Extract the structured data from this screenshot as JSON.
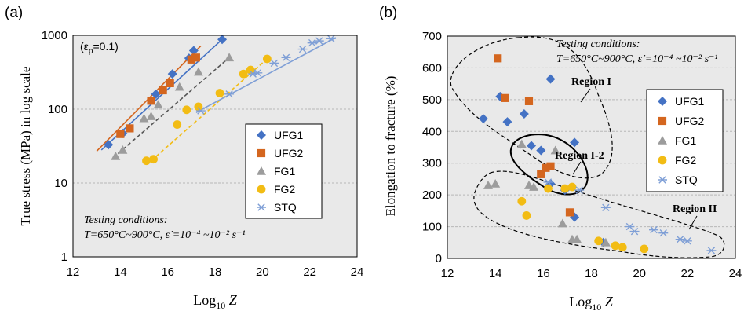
{
  "palette": {
    "UFG1": "#4472c4",
    "UFG2": "#d4661f",
    "FG1": "#9c9c9c",
    "FG2": "#f2bc14",
    "STQ": "#7f9fd6",
    "plot_bg": "#e9e9e9",
    "grid": "#b8b8b8"
  },
  "chart_data": [
    {
      "type": "scatter",
      "panel_label": "(a)",
      "xlabel_main": "Log",
      "xlabel_sub": "10",
      "xlabel_var": " Z",
      "ylabel": "True stress (MPa) in log scale",
      "xlim": [
        12,
        24
      ],
      "ylim": [
        1,
        1000
      ],
      "yscale": "log",
      "xticks": [
        "12",
        "14",
        "16",
        "18",
        "20",
        "22",
        "24"
      ],
      "yticks": [
        "1",
        "10",
        "100",
        "1000"
      ],
      "strain_note": "(ε",
      "strain_sub": "p",
      "strain_rest": "=0.1)",
      "note_line1": "Testing conditions:",
      "note_line2": "T=650°C~900°C,  ε̇ =10⁻⁴ ~10⁻² s⁻¹",
      "legend_position": "right",
      "series": [
        {
          "name": "UFG1",
          "marker": "diamond",
          "points": [
            [
              13.5,
              33
            ],
            [
              14.1,
              47
            ],
            [
              15.5,
              160
            ],
            [
              16.2,
              300
            ],
            [
              16.9,
              490
            ],
            [
              17.1,
              620
            ],
            [
              18.3,
              880
            ]
          ],
          "fit": [
            [
              13.2,
              28
            ],
            [
              18.3,
              880
            ]
          ],
          "fit_style": "solid"
        },
        {
          "name": "UFG2",
          "marker": "square",
          "points": [
            [
              14.0,
              46
            ],
            [
              14.4,
              55
            ],
            [
              15.3,
              130
            ],
            [
              15.8,
              180
            ],
            [
              16.1,
              225
            ],
            [
              17.0,
              470
            ],
            [
              17.2,
              500
            ]
          ],
          "fit": [
            [
              13.0,
              27
            ],
            [
              17.4,
              720
            ]
          ],
          "fit_style": "solid"
        },
        {
          "name": "FG1",
          "marker": "triangle",
          "points": [
            [
              13.8,
              23
            ],
            [
              14.1,
              28
            ],
            [
              15.0,
              75
            ],
            [
              15.3,
              80
            ],
            [
              15.6,
              115
            ],
            [
              16.5,
              200
            ],
            [
              17.3,
              320
            ],
            [
              18.6,
              500
            ]
          ],
          "fit": [
            [
              13.7,
              22
            ],
            [
              18.6,
              500
            ]
          ],
          "fit_style": "dashed"
        },
        {
          "name": "FG2",
          "marker": "circle",
          "points": [
            [
              15.1,
              20
            ],
            [
              15.4,
              21
            ],
            [
              16.4,
              62
            ],
            [
              16.8,
              98
            ],
            [
              17.3,
              108
            ],
            [
              18.2,
              165
            ],
            [
              19.2,
              300
            ],
            [
              19.5,
              340
            ],
            [
              20.2,
              480
            ]
          ],
          "fit": [
            [
              15.3,
              20
            ],
            [
              20.2,
              480
            ]
          ],
          "fit_style": "dashed"
        },
        {
          "name": "STQ",
          "marker": "asterisk",
          "points": [
            [
              17.4,
              95
            ],
            [
              18.6,
              160
            ],
            [
              19.6,
              300
            ],
            [
              19.8,
              310
            ],
            [
              20.5,
              420
            ],
            [
              21.0,
              500
            ],
            [
              21.7,
              650
            ],
            [
              22.1,
              790
            ],
            [
              22.4,
              840
            ],
            [
              22.9,
              900
            ]
          ],
          "fit": [
            [
              17.2,
              90
            ],
            [
              23.1,
              930
            ]
          ],
          "fit_style": "solid"
        }
      ]
    },
    {
      "type": "scatter",
      "panel_label": "(b)",
      "xlabel_main": "Log",
      "xlabel_sub": "10",
      "xlabel_var": " Z",
      "ylabel": "Elongation to fracture  (%)",
      "xlim": [
        12,
        24
      ],
      "ylim": [
        0,
        700
      ],
      "xticks": [
        "12",
        "14",
        "16",
        "18",
        "20",
        "22",
        "24"
      ],
      "yticks": [
        "0",
        "100",
        "200",
        "300",
        "400",
        "500",
        "600",
        "700"
      ],
      "note_line1": "Testing conditions:",
      "note_line2": "T=650°C~900°C,  ε̇ =10⁻⁴ ~10⁻² s⁻¹",
      "region1_label": "Region I",
      "region12_label": "Region I-2",
      "region2_label": "Region II",
      "legend_position": "right",
      "series": [
        {
          "name": "UFG1",
          "marker": "diamond",
          "points": [
            [
              13.5,
              440
            ],
            [
              14.2,
              510
            ],
            [
              14.5,
              430
            ],
            [
              15.2,
              455
            ],
            [
              15.5,
              355
            ],
            [
              15.9,
              340
            ],
            [
              16.3,
              565
            ],
            [
              16.3,
              235
            ],
            [
              16.9,
              215
            ],
            [
              17.3,
              365
            ],
            [
              17.3,
              130
            ],
            [
              18.5,
              50
            ]
          ]
        },
        {
          "name": "UFG2",
          "marker": "square",
          "points": [
            [
              14.1,
              630
            ],
            [
              14.4,
              505
            ],
            [
              15.4,
              495
            ],
            [
              15.9,
              265
            ],
            [
              16.1,
              285
            ],
            [
              16.3,
              290
            ],
            [
              17.1,
              145
            ]
          ]
        },
        {
          "name": "FG1",
          "marker": "triangle",
          "points": [
            [
              13.7,
              230
            ],
            [
              14.0,
              235
            ],
            [
              15.1,
              360
            ],
            [
              15.4,
              230
            ],
            [
              15.6,
              225
            ],
            [
              16.5,
              340
            ],
            [
              16.8,
              110
            ],
            [
              17.2,
              60
            ],
            [
              17.4,
              60
            ],
            [
              18.6,
              50
            ]
          ]
        },
        {
          "name": "FG2",
          "marker": "circle",
          "points": [
            [
              15.1,
              180
            ],
            [
              15.3,
              135
            ],
            [
              16.2,
              220
            ],
            [
              16.9,
              220
            ],
            [
              17.2,
              225
            ],
            [
              18.3,
              55
            ],
            [
              19.0,
              40
            ],
            [
              19.3,
              35
            ],
            [
              20.2,
              30
            ]
          ]
        },
        {
          "name": "STQ",
          "marker": "asterisk",
          "points": [
            [
              16.2,
              240
            ],
            [
              17.5,
              215
            ],
            [
              18.6,
              160
            ],
            [
              19.6,
              100
            ],
            [
              19.8,
              85
            ],
            [
              20.6,
              90
            ],
            [
              21.0,
              80
            ],
            [
              21.7,
              60
            ],
            [
              22.0,
              55
            ],
            [
              23.0,
              25
            ]
          ]
        }
      ]
    }
  ]
}
